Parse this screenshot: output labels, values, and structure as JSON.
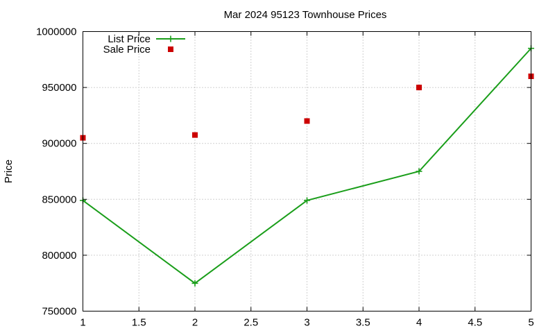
{
  "chart_data": {
    "type": "line",
    "title": "Mar 2024 95123 Townhouse Prices",
    "xlabel": "",
    "ylabel": "Price",
    "xlim": [
      1,
      5
    ],
    "ylim": [
      750000,
      1000000
    ],
    "x_ticks": [
      "1",
      "1.5",
      "2",
      "2.5",
      "3",
      "3.5",
      "4",
      "4.5",
      "5"
    ],
    "y_ticks": [
      "750000",
      "800000",
      "850000",
      "900000",
      "950000",
      "1000000"
    ],
    "grid": true,
    "legend_position": "top-left",
    "series": [
      {
        "name": "List Price",
        "style": "line-with-plus-markers",
        "color": "#1a9e1a",
        "x": [
          1,
          2,
          3,
          4,
          5
        ],
        "values": [
          849000,
          774900,
          849000,
          875000,
          985000
        ]
      },
      {
        "name": "Sale Price",
        "style": "square-markers",
        "color": "#cc0000",
        "x": [
          1,
          2,
          3,
          4,
          5
        ],
        "values": [
          905000,
          907500,
          920000,
          950000,
          960000
        ]
      }
    ]
  }
}
